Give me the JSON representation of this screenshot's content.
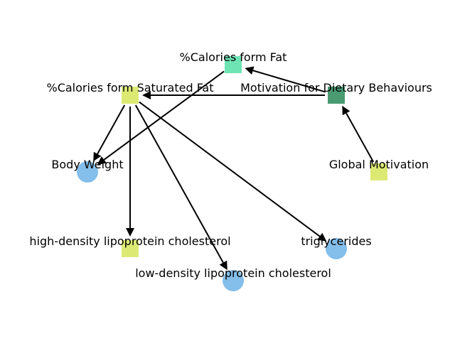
{
  "diagram": {
    "type": "directed-graph",
    "colors": {
      "green_square": "#4a9a72",
      "teal_square": "#6ee3b4",
      "yellow_square": "#dcea74",
      "blue_circle": "#84beea",
      "edge": "#000000"
    },
    "nodes": [
      {
        "id": "calories-fat",
        "label": "%Calories form Fat",
        "shape": "square",
        "color": "teal_square"
      },
      {
        "id": "calories-sat-fat",
        "label": "%Calories form Saturated Fat",
        "shape": "square",
        "color": "yellow_square"
      },
      {
        "id": "motivation-dietary",
        "label": "Motivation for Dietary Behaviours",
        "shape": "square",
        "color": "green_square"
      },
      {
        "id": "global-motivation",
        "label": "Global Motivation",
        "shape": "square",
        "color": "yellow_square"
      },
      {
        "id": "body-weight",
        "label": "Body Weight",
        "shape": "circle",
        "color": "blue_circle"
      },
      {
        "id": "hdl",
        "label": "high-density lipoprotein cholesterol",
        "shape": "square",
        "color": "yellow_square"
      },
      {
        "id": "triglycerides",
        "label": "triglycerides",
        "shape": "circle",
        "color": "blue_circle"
      },
      {
        "id": "ldl",
        "label": "low-density lipoprotein cholesterol",
        "shape": "circle",
        "color": "blue_circle"
      }
    ],
    "edges": [
      {
        "from": "global-motivation",
        "to": "motivation-dietary"
      },
      {
        "from": "motivation-dietary",
        "to": "calories-fat"
      },
      {
        "from": "motivation-dietary",
        "to": "calories-sat-fat"
      },
      {
        "from": "calories-fat",
        "to": "body-weight"
      },
      {
        "from": "calories-sat-fat",
        "to": "body-weight"
      },
      {
        "from": "calories-sat-fat",
        "to": "hdl"
      },
      {
        "from": "calories-sat-fat",
        "to": "ldl"
      },
      {
        "from": "calories-sat-fat",
        "to": "triglycerides"
      }
    ]
  }
}
